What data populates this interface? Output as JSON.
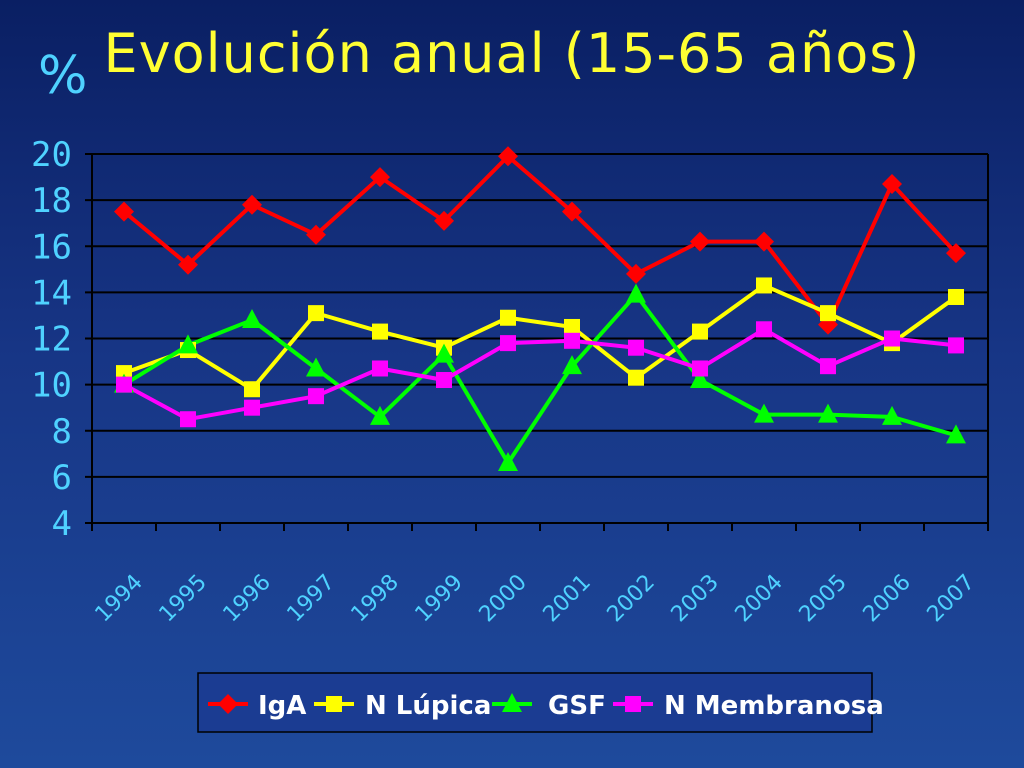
{
  "title": "Evolución anual (15-65 años)",
  "ylabel": "%",
  "chart_data": {
    "type": "line",
    "title": "Evolución anual (15-65 años)",
    "ylabel": "%",
    "xlabel": "",
    "categories": [
      "1994",
      "1995",
      "1996",
      "1997",
      "1998",
      "1999",
      "2000",
      "2001",
      "2002",
      "2003",
      "2004",
      "2005",
      "2006",
      "2007"
    ],
    "ylim": [
      4,
      20
    ],
    "yticks": [
      20,
      18,
      16,
      14,
      12,
      10,
      8,
      6,
      4
    ],
    "grid": true,
    "legend_position": "bottom",
    "series": [
      {
        "name": "IgA",
        "color": "#ff0000",
        "marker": "diamond",
        "values": [
          17.5,
          15.2,
          17.8,
          16.5,
          19.0,
          17.1,
          19.9,
          17.5,
          14.8,
          16.2,
          16.2,
          12.6,
          18.7,
          15.7
        ]
      },
      {
        "name": "N Lúpica",
        "color": "#ffff00",
        "marker": "square",
        "values": [
          10.5,
          11.5,
          9.8,
          13.1,
          12.3,
          11.6,
          12.9,
          12.5,
          10.3,
          12.3,
          14.3,
          13.1,
          11.8,
          13.8
        ]
      },
      {
        "name": "GSF",
        "color": "#00ff00",
        "marker": "triangle",
        "values": [
          10.0,
          11.7,
          12.8,
          10.7,
          8.6,
          11.3,
          6.6,
          10.8,
          13.9,
          10.2,
          8.7,
          8.7,
          8.6,
          7.8
        ]
      },
      {
        "name": "N Membranosa",
        "color": "#ff00ff",
        "marker": "square",
        "values": [
          10.0,
          8.5,
          9.0,
          9.5,
          10.7,
          10.2,
          11.8,
          11.9,
          11.6,
          10.7,
          12.4,
          10.8,
          12.0,
          11.7
        ]
      }
    ]
  }
}
